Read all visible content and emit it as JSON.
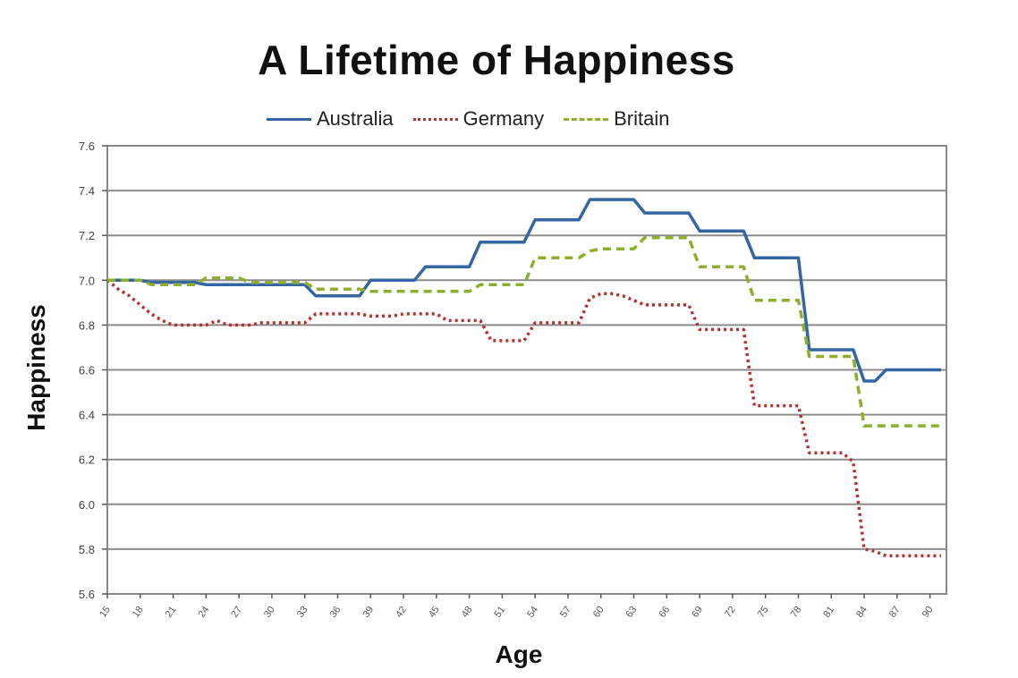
{
  "chart_data": {
    "type": "line",
    "title": "A Lifetime of Happiness",
    "xlabel": "Age",
    "ylabel": "Happiness",
    "ylim": [
      5.6,
      7.6
    ],
    "yticks": [
      "5.6",
      "5.8",
      "6.0",
      "6.2",
      "6.4",
      "6.6",
      "6.8",
      "7.0",
      "7.2",
      "7.4",
      "7.6"
    ],
    "xticks": [
      "15",
      "18",
      "21",
      "24",
      "27",
      "30",
      "33",
      "36",
      "39",
      "42",
      "45",
      "48",
      "51",
      "54",
      "57",
      "60",
      "63",
      "66",
      "69",
      "72",
      "75",
      "78",
      "81",
      "84",
      "87",
      "90"
    ],
    "xlim": [
      15,
      91.5
    ],
    "grid": true,
    "legend_position": "top",
    "x": [
      15,
      16,
      17,
      18,
      19,
      20,
      21,
      22,
      23,
      24,
      25,
      26,
      27,
      28,
      29,
      30,
      31,
      32,
      33,
      34,
      35,
      36,
      37,
      38,
      39,
      40,
      41,
      42,
      43,
      44,
      45,
      46,
      47,
      48,
      49,
      50,
      51,
      52,
      53,
      54,
      55,
      56,
      57,
      58,
      59,
      60,
      61,
      62,
      63,
      64,
      65,
      66,
      67,
      68,
      69,
      70,
      71,
      72,
      73,
      74,
      75,
      76,
      77,
      78,
      79,
      80,
      81,
      82,
      83,
      84,
      85,
      86,
      87,
      88,
      89,
      90,
      91
    ],
    "series": [
      {
        "name": "Australia",
        "color": "#3465a4",
        "style": "solid",
        "values": [
          7.0,
          7.0,
          7.0,
          7.0,
          6.99,
          6.99,
          6.99,
          6.99,
          6.99,
          6.98,
          6.98,
          6.98,
          6.98,
          6.98,
          6.98,
          6.98,
          6.98,
          6.98,
          6.98,
          6.93,
          6.93,
          6.93,
          6.93,
          6.93,
          7.0,
          7.0,
          7.0,
          7.0,
          7.0,
          7.06,
          7.06,
          7.06,
          7.06,
          7.06,
          7.17,
          7.17,
          7.17,
          7.17,
          7.17,
          7.27,
          7.27,
          7.27,
          7.27,
          7.27,
          7.36,
          7.36,
          7.36,
          7.36,
          7.36,
          7.3,
          7.3,
          7.3,
          7.3,
          7.3,
          7.22,
          7.22,
          7.22,
          7.22,
          7.22,
          7.1,
          7.1,
          7.1,
          7.1,
          7.1,
          6.69,
          6.69,
          6.69,
          6.69,
          6.69,
          6.55,
          6.55,
          6.6,
          6.6,
          6.6,
          6.6,
          6.6,
          6.6
        ]
      },
      {
        "name": "Germany",
        "color": "#b5302f",
        "style": "dotted",
        "values": [
          7.0,
          6.96,
          6.93,
          6.89,
          6.85,
          6.82,
          6.8,
          6.8,
          6.8,
          6.8,
          6.82,
          6.8,
          6.8,
          6.8,
          6.81,
          6.81,
          6.81,
          6.81,
          6.81,
          6.85,
          6.85,
          6.85,
          6.85,
          6.85,
          6.84,
          6.84,
          6.84,
          6.85,
          6.85,
          6.85,
          6.85,
          6.82,
          6.82,
          6.82,
          6.82,
          6.73,
          6.73,
          6.73,
          6.73,
          6.81,
          6.81,
          6.81,
          6.81,
          6.81,
          6.92,
          6.94,
          6.94,
          6.93,
          6.91,
          6.89,
          6.89,
          6.89,
          6.89,
          6.89,
          6.78,
          6.78,
          6.78,
          6.78,
          6.78,
          6.44,
          6.44,
          6.44,
          6.44,
          6.44,
          6.23,
          6.23,
          6.23,
          6.23,
          6.19,
          5.8,
          5.79,
          5.77,
          5.77,
          5.77,
          5.77,
          5.77,
          5.77
        ]
      },
      {
        "name": "Britain",
        "color": "#8fae2e",
        "style": "dashed",
        "values": [
          7.0,
          7.0,
          7.0,
          7.0,
          6.98,
          6.98,
          6.98,
          6.98,
          6.98,
          7.01,
          7.01,
          7.01,
          7.01,
          6.99,
          6.99,
          6.99,
          6.99,
          6.99,
          6.99,
          6.96,
          6.96,
          6.96,
          6.96,
          6.96,
          6.95,
          6.95,
          6.95,
          6.95,
          6.95,
          6.95,
          6.95,
          6.95,
          6.95,
          6.95,
          6.98,
          6.98,
          6.98,
          6.98,
          6.98,
          7.1,
          7.1,
          7.1,
          7.1,
          7.1,
          7.13,
          7.14,
          7.14,
          7.14,
          7.14,
          7.19,
          7.19,
          7.19,
          7.19,
          7.19,
          7.06,
          7.06,
          7.06,
          7.06,
          7.06,
          6.91,
          6.91,
          6.91,
          6.91,
          6.91,
          6.66,
          6.66,
          6.66,
          6.66,
          6.66,
          6.35,
          6.35,
          6.35,
          6.35,
          6.35,
          6.35,
          6.35,
          6.35
        ]
      }
    ]
  }
}
